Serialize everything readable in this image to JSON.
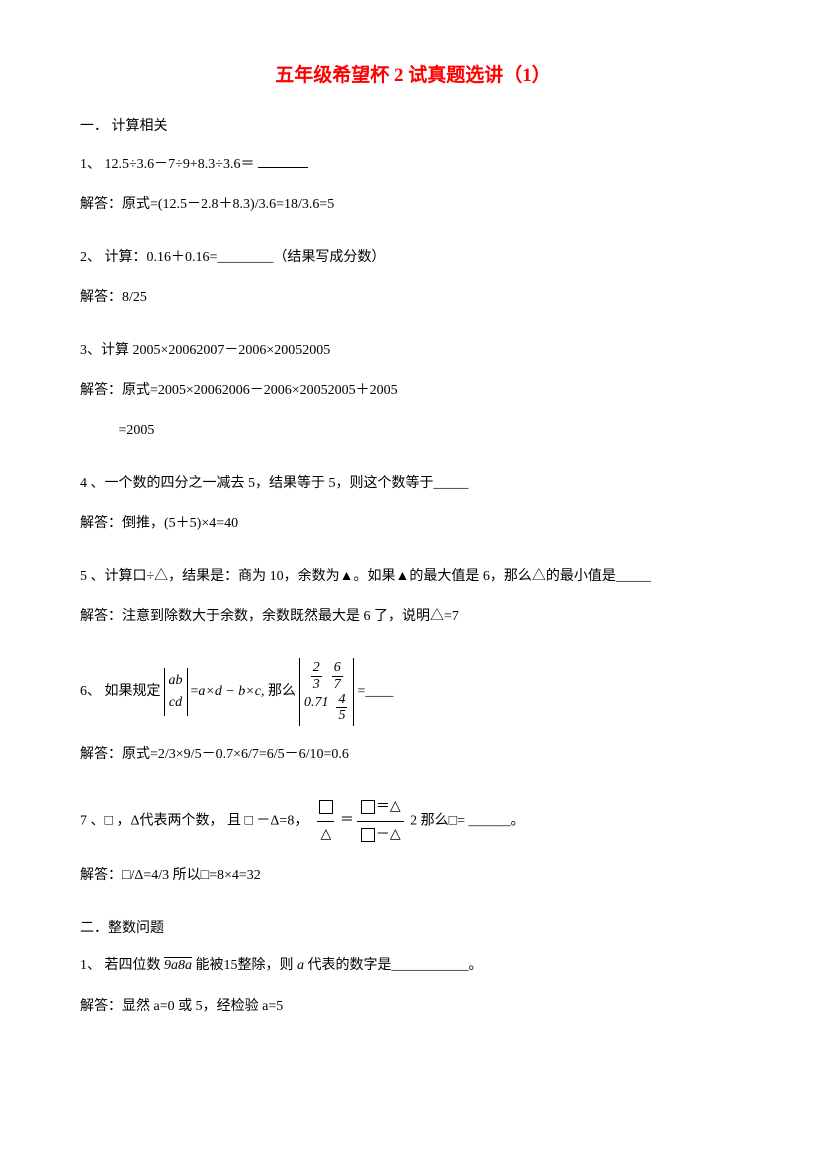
{
  "title": "五年级希望杯 2 试真题选讲（1）",
  "section1": "一．  计算相关",
  "q1_prefix": "1、",
  "q1_expr": "12.5÷3.6－7÷9+8.3÷3.6＝",
  "a1": "解答：原式=(12.5－2.8＋8.3)/3.6=18/3.6=5",
  "q2": "2、 计算：0.16＋0.16=________（结果写成分数）",
  "a2": "解答：8/25",
  "q3": "3、计算 2005×20062007－2006×20052005",
  "a3_1": "解答：原式=2005×20062006－2006×20052005＋2005",
  "a3_2": "           =2005",
  "q4": "4 、一个数的四分之一减去 5，结果等于 5，则这个数等于_____",
  "a4": "解答：倒推，(5＋5)×4=40",
  "q5": "5 、计算口÷△，结果是：商为 10，余数为▲。如果▲的最大值是 6，那么△的最小值是_____",
  "a5": "解答：注意到除数大于余数，余数既然最大是 6 了，说明△=7",
  "q6_prefix": "6、 如果规定",
  "q6_mid": "= ",
  "q6_formula": "a×d − b×c",
  "q6_then": ", 那么",
  "q6_eq": "=____",
  "det1_r1": "ab",
  "det1_r2": "cd",
  "det2_a": "2",
  "det2_b": "6",
  "det2_c": "3",
  "det2_d": "7",
  "det2_e": "0.71",
  "det2_f": "4",
  "det2_g": "5",
  "a6": "解答：原式=2/3×9/5－0.7×6/7=6/5－6/10=0.6",
  "q7_prefix": "7 、□ ，Δ代表两个数， 且 □ －Δ=8，",
  "q7_suffix": "2 那么□= ______。",
  "a7": "解答：□/Δ=4/3    所以□=8×4=32",
  "section2": "二．整数问题",
  "q2_1_prefix": "1、",
  "q2_1_a": "若四位数 ",
  "q2_1_num": "9a8a",
  "q2_1_b": " 能被15整除，则 ",
  "q2_1_c": "a",
  "q2_1_d": " 代表的数字是___________。",
  "a2_1": "解答：显然 a=0 或 5，经检验 a=5"
}
